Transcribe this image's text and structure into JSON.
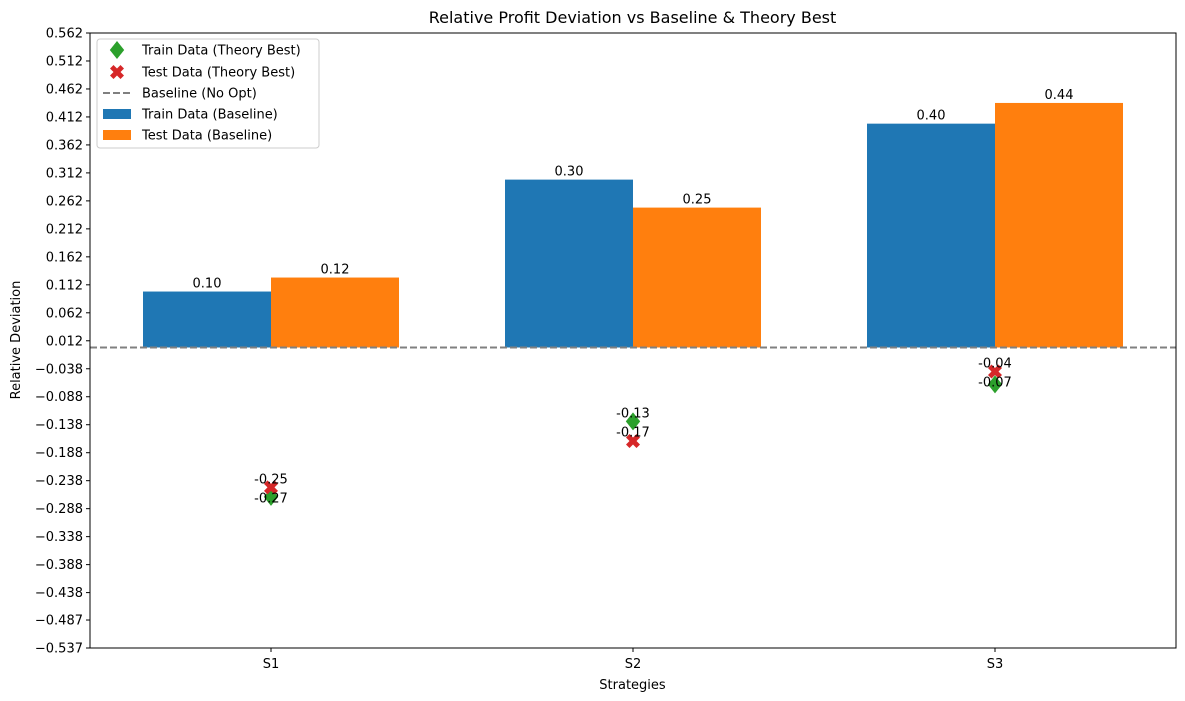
{
  "chart_data": {
    "type": "bar",
    "title": "Relative Profit Deviation vs Baseline & Theory Best",
    "xlabel": "Strategies",
    "ylabel": "Relative Deviation",
    "categories": [
      "S1",
      "S2",
      "S3"
    ],
    "ylim": [
      -0.537,
      0.562
    ],
    "yticks": [
      "-0.537",
      "-0.487",
      "-0.438",
      "-0.388",
      "-0.338",
      "-0.288",
      "-0.238",
      "-0.188",
      "-0.138",
      "-0.088",
      "-0.038",
      "0.012",
      "0.062",
      "0.112",
      "0.162",
      "0.212",
      "0.262",
      "0.312",
      "0.362",
      "0.412",
      "0.462",
      "0.512",
      "0.562"
    ],
    "grid": false,
    "legend_position": "top-left",
    "series": [
      {
        "name": "Train Data (Baseline)",
        "kind": "bar",
        "color": "#1f77b4",
        "values": [
          0.1,
          0.3,
          0.4
        ],
        "labels": [
          "0.10",
          "0.30",
          "0.40"
        ]
      },
      {
        "name": "Test Data (Baseline)",
        "kind": "bar",
        "color": "#ff7f0e",
        "values": [
          0.125,
          0.25,
          0.437
        ],
        "labels": [
          "0.12",
          "0.25",
          "0.44"
        ]
      },
      {
        "name": "Train Data (Theory Best)",
        "kind": "marker",
        "marker": "diamond",
        "color": "#2ca02c",
        "values": [
          -0.267,
          -0.132,
          -0.066
        ],
        "labels": [
          "-0.27",
          "-0.13",
          "-0.07"
        ]
      },
      {
        "name": "Test Data (Theory Best)",
        "kind": "marker",
        "marker": "x",
        "color": "#d62728",
        "values": [
          -0.25,
          -0.167,
          -0.043
        ],
        "labels": [
          "-0.25",
          "-0.17",
          "-0.04"
        ]
      }
    ],
    "baseline": {
      "name": "Baseline (No Opt)",
      "value": 0.0,
      "color": "#808080",
      "style": "dashed"
    },
    "legend_order": [
      "Train Data (Theory Best)",
      "Test Data (Theory Best)",
      "Baseline (No Opt)",
      "Train Data (Baseline)",
      "Test Data (Baseline)"
    ]
  }
}
